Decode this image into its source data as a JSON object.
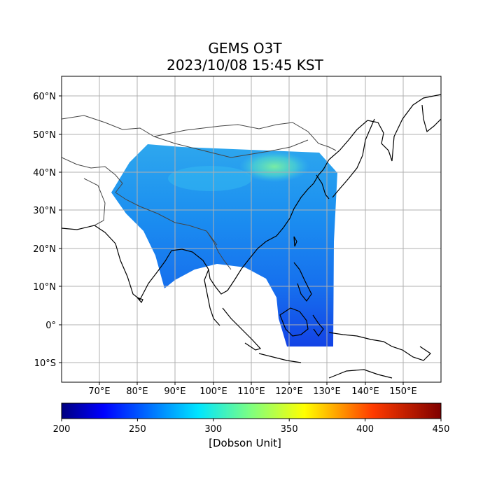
{
  "title": "GEMS O3T",
  "subtitle": "2023/10/08 15:45 KST",
  "map": {
    "lon_range": [
      60,
      160
    ],
    "lat_range": [
      -15,
      65
    ],
    "lon_ticks": [
      "70°E",
      "80°E",
      "90°E",
      "100°E",
      "110°E",
      "120°E",
      "130°E",
      "140°E",
      "150°E"
    ],
    "lat_ticks": [
      "60°N",
      "50°N",
      "40°N",
      "30°N",
      "20°N",
      "10°N",
      "0°",
      "10°S"
    ],
    "grid": true,
    "coastline_color": "#000000",
    "border_color": "#444444"
  },
  "colorbar": {
    "colormap": "jet",
    "min": 200,
    "max": 450,
    "ticks": [
      "200",
      "250",
      "300",
      "350",
      "400",
      "450"
    ],
    "label": "[Dobson Unit]",
    "colors": [
      "#00007f",
      "#0000ff",
      "#007fff",
      "#00ffff",
      "#7fff7f",
      "#ffff00",
      "#ff7f00",
      "#ff0000",
      "#7f0000"
    ]
  },
  "data_field": {
    "dominant_color": "#1a8cf0",
    "low_color": "#1447e6",
    "high_color": "#5fe8b0"
  }
}
